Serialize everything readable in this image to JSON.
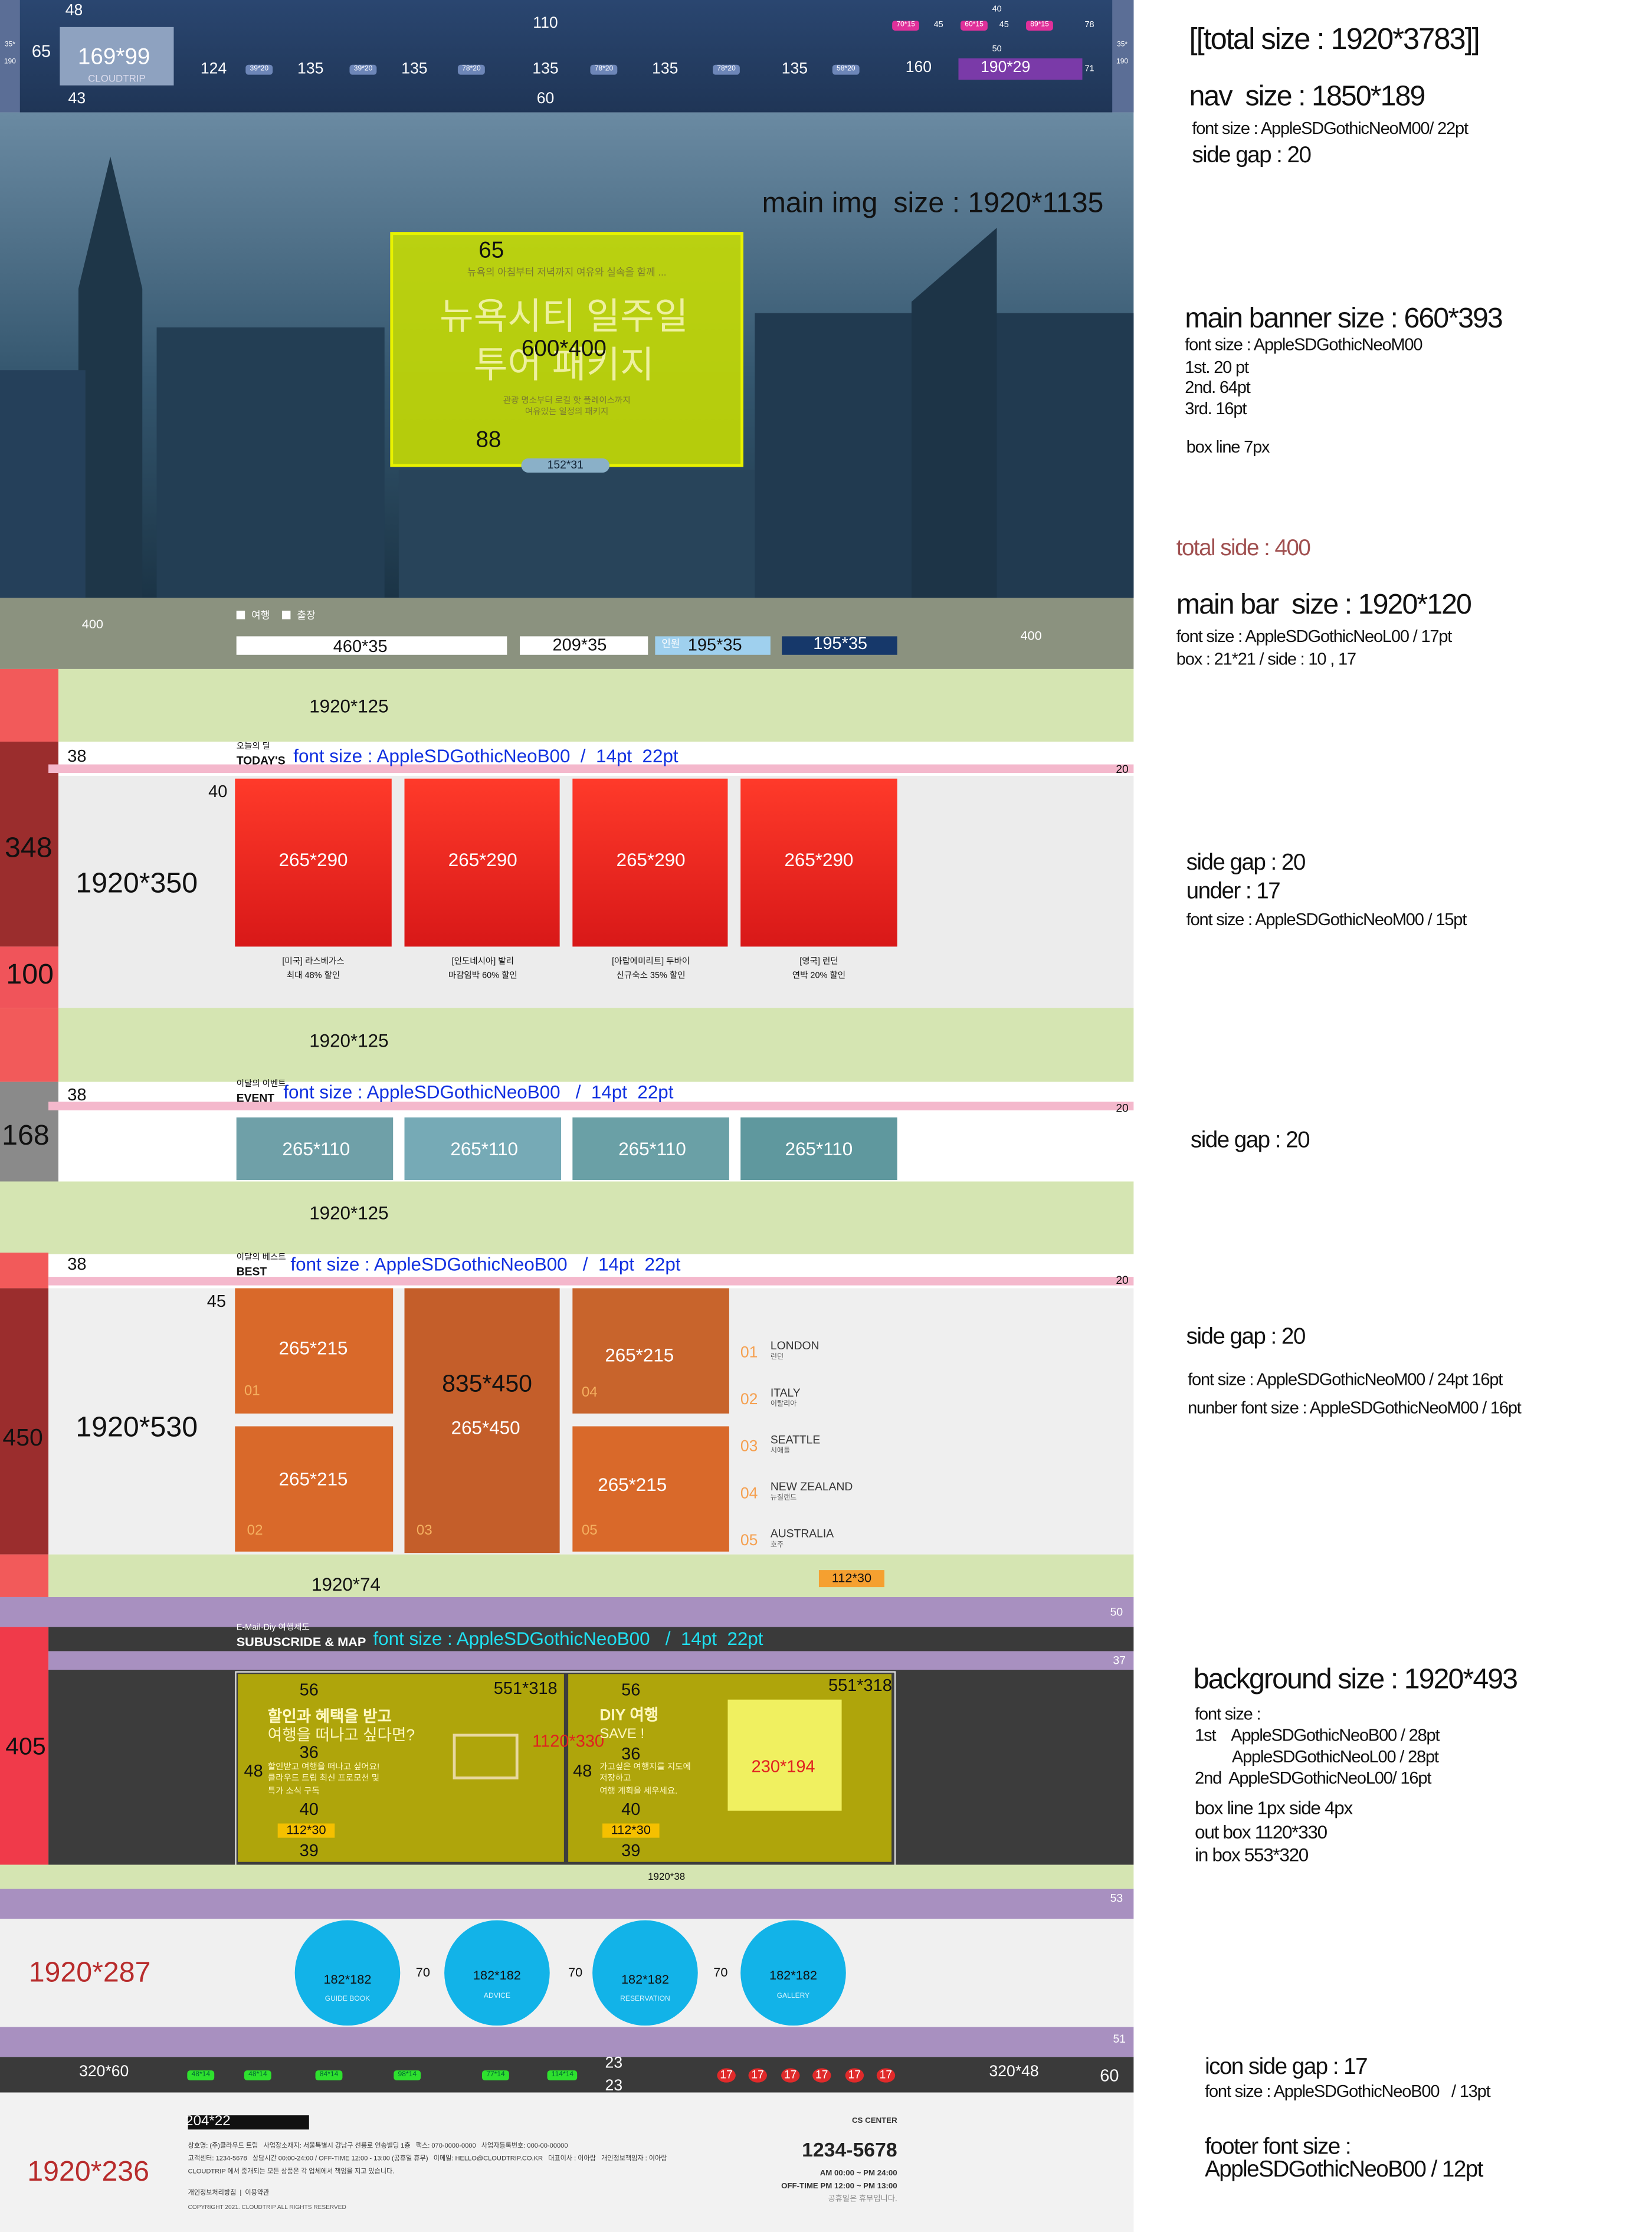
{
  "nav": {
    "labels": [
      "48",
      "110",
      "65",
      "169*99",
      "CLOUDTRIP",
      "43",
      "60",
      "124",
      "39*20",
      "135",
      "39*20",
      "135",
      "78*20",
      "135",
      "78*20",
      "135",
      "78*20",
      "135",
      "58*20",
      "160",
      "190*29",
      "70*15",
      "45",
      "60*15",
      "45",
      "89*15",
      "40",
      "50",
      "78",
      "71",
      "35*",
      "190",
      "35*",
      "190"
    ]
  },
  "hero": {
    "labels": [
      "main img  size : 1920*1135",
      "65",
      "뉴욕의 아침부터 저녁까지 여유와 실속을 함께 ...",
      "뉴욕시티 일주일",
      "투어 패키지",
      "600*400",
      "관광 명소부터 로컬 핫 플레이스까지",
      "여유있는 일정의 패키지",
      "88",
      "152*31"
    ]
  },
  "main_bar": {
    "labels": [
      "400",
      "여행",
      "출장",
      "460*35",
      "209*35",
      "인원",
      "195*35",
      "195*35",
      "400"
    ]
  },
  "today": {
    "labels": [
      "1920*125",
      "38",
      "오늘의 딜",
      "TODAY'S",
      "font size : AppleSDGothicNeoB00  /  14pt  22pt",
      "20",
      "40",
      "348",
      "1920*350",
      "265*290",
      "265*290",
      "265*290",
      "265*290",
      "[미국] 라스베가스",
      "최대 48% 할인",
      "[인도네시아] 발리",
      "마감임박 60% 할인",
      "[아랍에미리트] 두바이",
      "신규숙소 35% 할인",
      "[영국] 런던",
      "연박 20% 할인",
      "100",
      "1920*125"
    ]
  },
  "event": {
    "labels": [
      "38",
      "이달의 이벤트",
      "EVENT",
      "font size : AppleSDGothicNeoB00   /  14pt  22pt",
      "20",
      "168",
      "265*110",
      "265*110",
      "265*110",
      "265*110",
      "1920*125"
    ]
  },
  "best": {
    "labels": [
      "38",
      "이달의 베스트",
      "BEST",
      "font size : AppleSDGothicNeoB00   /  14pt  22pt",
      "20",
      "45",
      "450",
      "1920*530",
      "265*215",
      "835*450",
      "265*450",
      "265*215",
      "265*215",
      "265*215",
      "01",
      "02",
      "03",
      "04",
      "05",
      "01",
      "LONDON",
      "런던",
      "02",
      "ITALY",
      "이탈리아",
      "03",
      "SEATTLE",
      "시애틀",
      "04",
      "NEW ZEALAND",
      "뉴질랜드",
      "05",
      "AUSTRALIA",
      "호주",
      "1920*74",
      "112*30"
    ]
  },
  "subscribe": {
    "labels": [
      "50",
      "E-Mail·Diy 여행제도",
      "SUBUSCRIDE & MAP",
      "font size : AppleSDGothicNeoB00   /  14pt  22pt",
      "37",
      "405",
      "56",
      "551*318",
      "할인과 혜택을 받고",
      "여행을 떠나고 싶다면?",
      "36",
      "48",
      "할인받고 여행을 떠나고 싶어요!",
      "클라우드 트립 최신 프로모션 및",
      "특가 소식 구독",
      "40",
      "112*30",
      "39",
      "1120*330",
      "56",
      "551*318",
      "DIY 여행",
      "SAVE !",
      "36",
      "48",
      "가고싶은 여행지를 지도에",
      "저장하고",
      "여행 계획을 세우세요.",
      "40",
      "112*30",
      "39",
      "230*194",
      "1920*38"
    ]
  },
  "icons": {
    "labels": [
      "53",
      "1920*287",
      "182*182",
      "182*182",
      "182*182",
      "182*182",
      "GUIDE BOOK",
      "ADVICE",
      "RESERVATION",
      "GALLERY",
      "70",
      "70",
      "70",
      "51"
    ]
  },
  "footer_bar": {
    "labels": [
      "320*60",
      "48*14",
      "48*14",
      "84*14",
      "98*14",
      "77*14",
      "114*14",
      "23",
      "23",
      "17",
      "17",
      "17",
      "17",
      "17",
      "17",
      "320*48",
      "60"
    ]
  },
  "footer": {
    "labels": [
      "204*22",
      "1920*236",
      "상호명: (주)클라우드 트립   사업장소재지: 서울특별시 강남구 선릉로 언송빌딩 1층   팩스: 070-0000-0000   사업자등록번호: 000-00-00000",
      "고객센터: 1234-5678   상담시간 00:00-24:00 / OFF-TIME 12:00 - 13:00 (공휴일 휴무)   이메일: HELLO@CLOUDTRIP.CO.KR   대표이사 : 이아람   개인정보책임자 : 이아람",
      "CLOUDTRIP 에서 중개되는 모든 상품은 각 업체에서 책임을 지고 있습니다.",
      "개인정보처리방침  |  이용약관",
      "COPYRIGHT 2021. CLOUDTRIP ALL RIGHTS RESERVED",
      "CS CENTER",
      "1234-5678",
      "AM 00:00 ~ PM 24:00",
      "OFF-TIME PM 12:00 ~ PM 13:00",
      "공휴일은 휴무입니다."
    ]
  },
  "notes": {
    "labels": [
      "[[total size : 1920*3783]]",
      "nav  size : 1850*189",
      "font size : AppleSDGothicNeoM00/ 22pt",
      "side gap : 20",
      "main banner size : 660*393",
      "font size : AppleSDGothicNeoM00",
      "1st. 20 pt",
      "2nd. 64pt",
      "3rd. 16pt",
      "box line 7px",
      "total side : 400",
      "main bar  size : 1920*120",
      "font size : AppleSDGothicNeoL00 / 17pt",
      "box : 21*21 / side : 10 , 17",
      "side gap : 20",
      "under : 17",
      "font size : AppleSDGothicNeoM00 / 15pt",
      "side gap : 20",
      "side gap : 20",
      "font size : AppleSDGothicNeoM00 / 24pt 16pt",
      "nunber font size : AppleSDGothicNeoM00 / 16pt",
      "background size : 1920*493",
      "font size :",
      "1st    AppleSDGothicNeoB00 / 28pt",
      "AppleSDGothicNeoL00 / 28pt",
      "2nd  AppleSDGothicNeoL00/ 16pt",
      "box line 1px side 4px",
      "out box 1120*330",
      "in box 553*320",
      "icon side gap : 17",
      "font size : AppleSDGothicNeoB00   / 13pt",
      "footer font size :",
      "AppleSDGothicNeoB00 / 12pt"
    ]
  }
}
